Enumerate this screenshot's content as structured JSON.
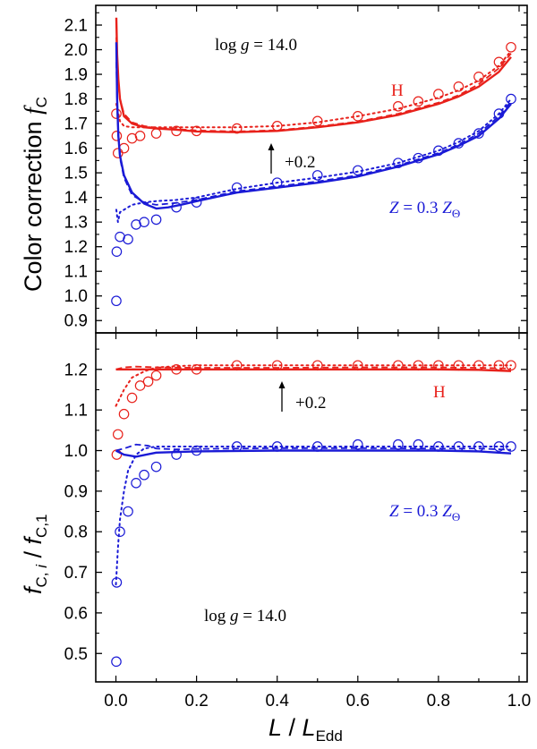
{
  "colors": {
    "h": "#e8211b",
    "z": "#1a1ad6",
    "axis": "#000000"
  },
  "chart_data": [
    {
      "type": "line",
      "panel": "top",
      "ylabel": {
        "prefix": "Color correction ",
        "symbol": "f",
        "sub": "C"
      },
      "xlim": [
        -0.05,
        1.02
      ],
      "ylim": [
        0.85,
        2.18
      ],
      "yticks": [
        "0.9",
        "1.0",
        "1.1",
        "1.2",
        "1.3",
        "1.4",
        "1.5",
        "1.6",
        "1.7",
        "1.8",
        "1.9",
        "2.0",
        "2.1"
      ],
      "annotations": {
        "logg": {
          "prefix": "log ",
          "var": "g",
          "rest": " = 14.0"
        },
        "h": "H",
        "z": {
          "var": "Z",
          "mid": " = 0.3 ",
          "var2": "Z",
          "sub": "Θ"
        },
        "offset": "+0.2"
      },
      "series": [
        {
          "name": "H solid",
          "color": "h",
          "dash": "solid",
          "x": [
            0.001,
            0.003,
            0.006,
            0.01,
            0.02,
            0.04,
            0.07,
            0.1,
            0.15,
            0.2,
            0.3,
            0.4,
            0.5,
            0.6,
            0.7,
            0.8,
            0.85,
            0.9,
            0.95,
            0.98
          ],
          "y": [
            2.13,
            1.98,
            1.88,
            1.8,
            1.73,
            1.7,
            1.685,
            1.68,
            1.675,
            1.668,
            1.665,
            1.67,
            1.685,
            1.705,
            1.735,
            1.78,
            1.81,
            1.85,
            1.91,
            1.97
          ]
        },
        {
          "name": "H dashed",
          "color": "h",
          "dash": "dashed",
          "x": [
            0.001,
            0.004,
            0.01,
            0.02,
            0.04,
            0.07,
            0.1,
            0.15,
            0.2,
            0.3,
            0.4,
            0.5,
            0.6,
            0.7,
            0.8,
            0.85,
            0.9,
            0.95,
            0.98
          ],
          "y": [
            2.05,
            1.9,
            1.8,
            1.74,
            1.705,
            1.69,
            1.683,
            1.678,
            1.672,
            1.668,
            1.673,
            1.688,
            1.708,
            1.74,
            1.785,
            1.815,
            1.86,
            1.925,
            1.985
          ]
        },
        {
          "name": "H dotted",
          "color": "h",
          "dash": "dotted",
          "x": [
            0.001,
            0.01,
            0.02,
            0.04,
            0.07,
            0.1,
            0.15,
            0.2,
            0.3,
            0.4,
            0.5,
            0.6,
            0.7,
            0.8,
            0.85,
            0.9,
            0.95,
            0.98
          ],
          "y": [
            1.78,
            1.71,
            1.69,
            1.685,
            1.685,
            1.685,
            1.685,
            1.685,
            1.685,
            1.69,
            1.705,
            1.73,
            1.76,
            1.805,
            1.835,
            1.875,
            1.935,
            1.995
          ]
        },
        {
          "name": "H points",
          "color": "h",
          "dash": "markers",
          "x": [
            0.001,
            0.002,
            0.005,
            0.02,
            0.04,
            0.06,
            0.1,
            0.15,
            0.2,
            0.3,
            0.4,
            0.5,
            0.6,
            0.7,
            0.75,
            0.8,
            0.85,
            0.9,
            0.95,
            0.98
          ],
          "y": [
            1.74,
            1.65,
            1.58,
            1.6,
            1.64,
            1.65,
            1.66,
            1.67,
            1.67,
            1.68,
            1.69,
            1.71,
            1.73,
            1.77,
            1.79,
            1.82,
            1.85,
            1.89,
            1.95,
            2.01
          ]
        },
        {
          "name": "Z solid",
          "color": "z",
          "dash": "solid",
          "x": [
            0.001,
            0.003,
            0.006,
            0.01,
            0.02,
            0.04,
            0.07,
            0.1,
            0.13,
            0.16,
            0.2,
            0.3,
            0.4,
            0.5,
            0.6,
            0.7,
            0.8,
            0.85,
            0.9,
            0.95,
            0.98
          ],
          "y": [
            2.03,
            1.8,
            1.65,
            1.57,
            1.49,
            1.42,
            1.375,
            1.355,
            1.36,
            1.37,
            1.385,
            1.42,
            1.44,
            1.46,
            1.485,
            1.525,
            1.575,
            1.61,
            1.65,
            1.72,
            1.78
          ]
        },
        {
          "name": "Z dashed",
          "color": "z",
          "dash": "dashed",
          "x": [
            0.001,
            0.004,
            0.01,
            0.02,
            0.04,
            0.07,
            0.1,
            0.15,
            0.2,
            0.3,
            0.4,
            0.5,
            0.6,
            0.7,
            0.8,
            0.85,
            0.9,
            0.95,
            0.98
          ],
          "y": [
            1.95,
            1.72,
            1.56,
            1.48,
            1.41,
            1.38,
            1.37,
            1.378,
            1.39,
            1.425,
            1.445,
            1.465,
            1.49,
            1.53,
            1.58,
            1.615,
            1.66,
            1.73,
            1.79
          ]
        },
        {
          "name": "Z dotted",
          "color": "z",
          "dash": "dotted",
          "x": [
            0.001,
            0.005,
            0.01,
            0.02,
            0.04,
            0.07,
            0.1,
            0.15,
            0.2,
            0.3,
            0.4,
            0.5,
            0.6,
            0.7,
            0.8,
            0.85,
            0.9,
            0.95,
            0.98
          ],
          "y": [
            1.35,
            1.3,
            1.34,
            1.35,
            1.37,
            1.38,
            1.385,
            1.39,
            1.4,
            1.435,
            1.46,
            1.48,
            1.505,
            1.54,
            1.59,
            1.625,
            1.67,
            1.74,
            1.8
          ]
        },
        {
          "name": "Z points",
          "color": "z",
          "dash": "markers",
          "x": [
            0.001,
            0.002,
            0.01,
            0.03,
            0.05,
            0.07,
            0.1,
            0.15,
            0.2,
            0.3,
            0.4,
            0.5,
            0.6,
            0.7,
            0.75,
            0.8,
            0.85,
            0.9,
            0.95,
            0.98
          ],
          "y": [
            0.98,
            1.18,
            1.24,
            1.23,
            1.29,
            1.3,
            1.31,
            1.36,
            1.38,
            1.44,
            1.46,
            1.49,
            1.51,
            1.54,
            1.56,
            1.59,
            1.62,
            1.66,
            1.74,
            1.8
          ]
        }
      ]
    },
    {
      "type": "line",
      "panel": "bottom",
      "ylabel": {
        "f1": "f",
        "sub1": "C, ",
        "isub": "i",
        "slash": " / ",
        "f2": "f",
        "sub2": "C,1"
      },
      "xlabel": {
        "L": "L",
        "slash": " / ",
        "L2": "L",
        "sub": "Edd"
      },
      "xlim": [
        -0.05,
        1.02
      ],
      "ylim": [
        0.43,
        1.29
      ],
      "xticks": [
        "0.0",
        "0.2",
        "0.4",
        "0.6",
        "0.8",
        "1.0"
      ],
      "yticks": [
        "0.5",
        "0.6",
        "0.7",
        "0.8",
        "0.9",
        "1.0",
        "1.1",
        "1.2"
      ],
      "annotations": {
        "logg": {
          "prefix": "log ",
          "var": "g",
          "rest": " = 14.0"
        },
        "h": "H",
        "z": {
          "var": "Z",
          "mid": " = 0.3 ",
          "var2": "Z",
          "sub": "Θ"
        },
        "offset": "+0.2"
      },
      "series": [
        {
          "name": "H solid",
          "color": "h",
          "dash": "solid",
          "x": [
            0.0,
            0.05,
            0.1,
            0.2,
            0.4,
            0.6,
            0.8,
            0.9,
            0.98
          ],
          "y": [
            1.2,
            1.2,
            1.2,
            1.2,
            1.2,
            1.2,
            1.2,
            1.199,
            1.196
          ]
        },
        {
          "name": "H dashed",
          "color": "h",
          "dash": "dashed",
          "x": [
            0.0,
            0.02,
            0.05,
            0.1,
            0.2,
            0.4,
            0.6,
            0.8,
            0.9,
            0.98
          ],
          "y": [
            1.2,
            1.205,
            1.207,
            1.205,
            1.204,
            1.204,
            1.205,
            1.205,
            1.204,
            1.202
          ]
        },
        {
          "name": "H dotted",
          "color": "h",
          "dash": "dotted",
          "x": [
            0.0,
            0.01,
            0.02,
            0.04,
            0.07,
            0.1,
            0.15,
            0.2,
            0.3,
            0.5,
            0.7,
            0.9,
            0.98
          ],
          "y": [
            1.11,
            1.13,
            1.15,
            1.18,
            1.195,
            1.205,
            1.208,
            1.21,
            1.21,
            1.21,
            1.21,
            1.21,
            1.21
          ]
        },
        {
          "name": "H points",
          "color": "h",
          "dash": "markers",
          "x": [
            0.002,
            0.005,
            0.02,
            0.04,
            0.06,
            0.08,
            0.1,
            0.15,
            0.2,
            0.3,
            0.4,
            0.5,
            0.6,
            0.7,
            0.75,
            0.8,
            0.85,
            0.9,
            0.95,
            0.98
          ],
          "y": [
            0.99,
            1.04,
            1.09,
            1.13,
            1.16,
            1.17,
            1.185,
            1.2,
            1.2,
            1.21,
            1.21,
            1.21,
            1.21,
            1.21,
            1.21,
            1.21,
            1.21,
            1.21,
            1.21,
            1.21
          ]
        },
        {
          "name": "Z solid",
          "color": "z",
          "dash": "solid",
          "x": [
            0.0,
            0.02,
            0.05,
            0.1,
            0.2,
            0.4,
            0.6,
            0.8,
            0.9,
            0.98
          ],
          "y": [
            1.0,
            0.99,
            0.985,
            0.995,
            0.998,
            1.0,
            1.0,
            1.0,
            0.998,
            0.993
          ]
        },
        {
          "name": "Z dashed",
          "color": "z",
          "dash": "dashed",
          "x": [
            0.0,
            0.02,
            0.05,
            0.08,
            0.1,
            0.15,
            0.2,
            0.4,
            0.6,
            0.8,
            0.9,
            0.98
          ],
          "y": [
            1.0,
            1.005,
            1.015,
            1.012,
            1.005,
            1.003,
            1.004,
            1.006,
            1.006,
            1.005,
            1.005,
            1.002
          ]
        },
        {
          "name": "Z dotted",
          "color": "z",
          "dash": "dotted",
          "x": [
            0.0,
            0.005,
            0.01,
            0.02,
            0.03,
            0.05,
            0.07,
            0.1,
            0.15,
            0.2,
            0.3,
            0.5,
            0.7,
            0.9,
            0.98
          ],
          "y": [
            0.67,
            0.76,
            0.83,
            0.9,
            0.95,
            0.99,
            1.005,
            1.01,
            1.01,
            1.01,
            1.01,
            1.01,
            1.01,
            1.01,
            1.01
          ]
        },
        {
          "name": "Z points",
          "color": "z",
          "dash": "markers",
          "x": [
            0.001,
            0.002,
            0.01,
            0.03,
            0.05,
            0.07,
            0.1,
            0.15,
            0.2,
            0.3,
            0.4,
            0.5,
            0.6,
            0.7,
            0.75,
            0.8,
            0.85,
            0.9,
            0.95,
            0.98
          ],
          "y": [
            0.48,
            0.675,
            0.8,
            0.85,
            0.92,
            0.94,
            0.96,
            0.99,
            1.0,
            1.01,
            1.01,
            1.01,
            1.015,
            1.015,
            1.015,
            1.01,
            1.01,
            1.01,
            1.01,
            1.01
          ]
        }
      ]
    }
  ]
}
